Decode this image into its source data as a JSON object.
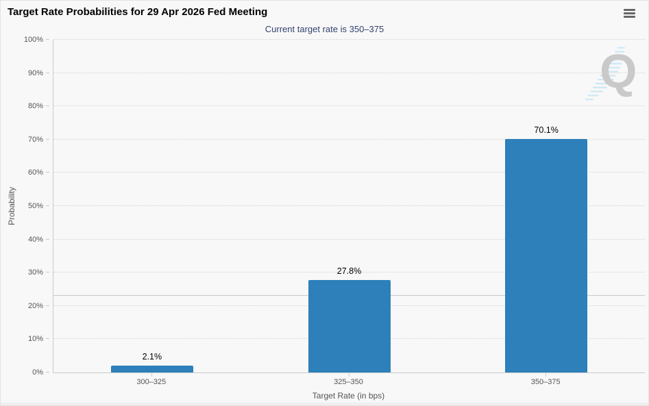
{
  "header": {
    "title": "Target Rate Probabilities for 29 Apr 2026 Fed Meeting",
    "menu_icon": "hamburger-menu-icon"
  },
  "chart_data": {
    "type": "bar",
    "title": "Target Rate Probabilities for 29 Apr 2026 Fed Meeting",
    "subtitle": "Current target rate is 350–375",
    "categories": [
      "300–325",
      "325–350",
      "350–375"
    ],
    "values": [
      2.1,
      27.8,
      70.1
    ],
    "value_labels": [
      "2.1%",
      "27.8%",
      "70.1%"
    ],
    "xlabel": "Target Rate (in bps)",
    "ylabel": "Probability",
    "ylim": [
      0,
      100
    ],
    "ytick_step": 10,
    "ytick_labels": [
      "0%",
      "10%",
      "20%",
      "30%",
      "40%",
      "50%",
      "60%",
      "70%",
      "80%",
      "90%",
      "100%"
    ],
    "grid": "horizontal dotted",
    "legend": "none",
    "reference_line_y": 23,
    "bar_color": "#2d80b9",
    "watermark_letter": "Q"
  },
  "colors": {
    "background": "#f8f8f8",
    "bar": "#2d80b9",
    "axis": "#c9c9c9",
    "grid": "#d4d4d4",
    "subtitle": "#33426e",
    "axis_text": "#545454",
    "watermark_gray": "#c9c9c9",
    "watermark_blue": "#cfe9f5"
  }
}
